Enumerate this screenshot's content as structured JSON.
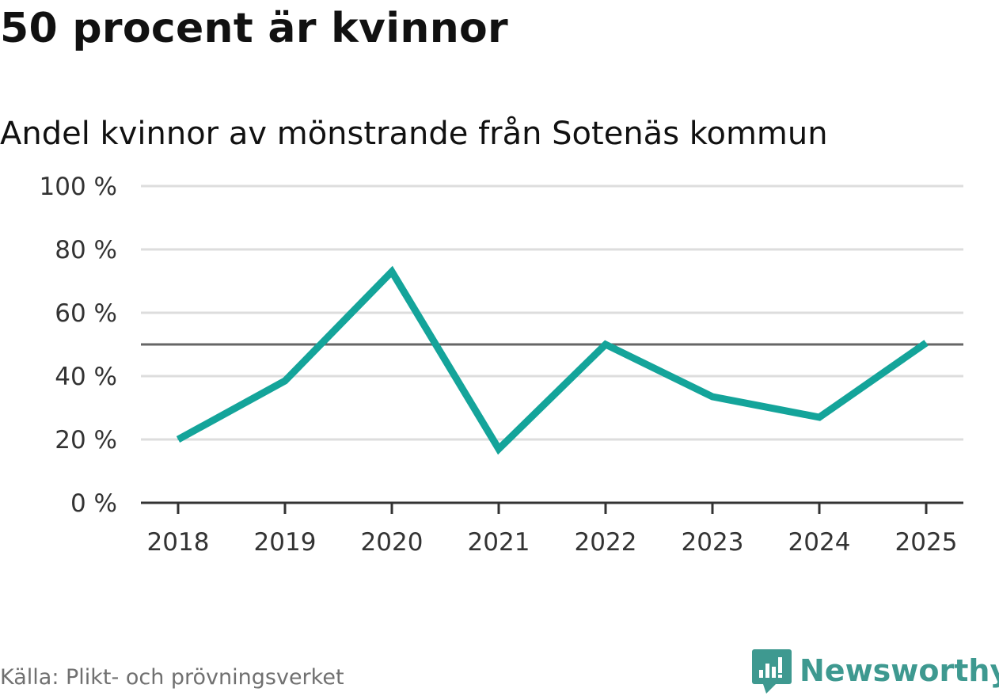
{
  "header": {
    "title": "50 procent är kvinnor",
    "subtitle": "Andel kvinnor av mönstrande från Sotenäs kommun"
  },
  "footer": {
    "source": "Källa: Plikt- och prövningsverket",
    "brand": "Newsworthy"
  },
  "colors": {
    "line": "#14a49a",
    "reference": "#666666",
    "grid": "#dddddd",
    "axis": "#333333",
    "brand": "#3e9990"
  },
  "chart_data": {
    "type": "line",
    "title": "50 procent är kvinnor",
    "subtitle": "Andel kvinnor av mönstrande från Sotenäs kommun",
    "xlabel": "",
    "ylabel": "",
    "categories": [
      "2018",
      "2019",
      "2020",
      "2021",
      "2022",
      "2023",
      "2024",
      "2025"
    ],
    "series": [
      {
        "name": "Andel kvinnor",
        "values": [
          20,
          38.5,
          73,
          17,
          50,
          33.5,
          27,
          50.5
        ]
      }
    ],
    "reference_line": 50,
    "ylim": [
      0,
      100
    ],
    "yticks": [
      0,
      20,
      40,
      60,
      80,
      100
    ],
    "ytick_labels": [
      "0 %",
      "20 %",
      "40 %",
      "60 %",
      "80 %",
      "100 %"
    ],
    "grid": true
  }
}
